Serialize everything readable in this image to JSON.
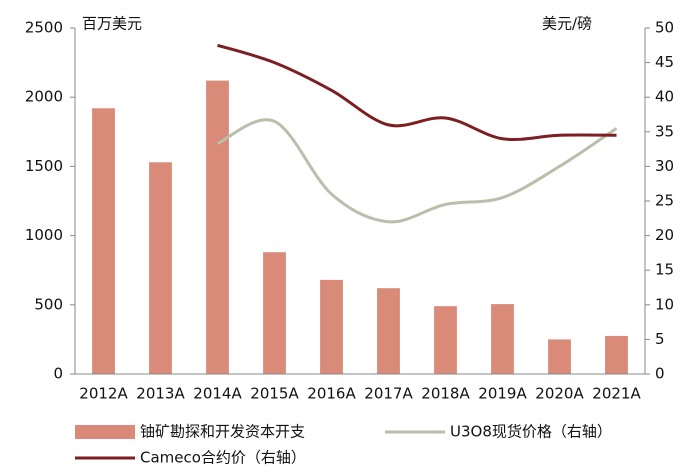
{
  "chart_data": {
    "type": "bar_line",
    "y_label": "百万美元",
    "y2_label": "美元/磅",
    "categories": [
      "2012A",
      "2013A",
      "2014A",
      "2015A",
      "2016A",
      "2017A",
      "2018A",
      "2019A",
      "2020A",
      "2021A"
    ],
    "series": [
      {
        "name": "铀矿勘探和开发资本开支",
        "type": "bar",
        "color": "#d98a78",
        "axis": "y",
        "values": [
          1920,
          1530,
          2120,
          880,
          680,
          620,
          490,
          505,
          250,
          275
        ]
      },
      {
        "name": "U3O8现货价格（右轴）",
        "type": "line",
        "color": "#b8bfaa",
        "axis": "y2",
        "values": [
          null,
          null,
          33.3,
          36.5,
          26,
          22,
          24.5,
          25.5,
          30,
          35.5
        ]
      },
      {
        "name": "Cameco合约价（右轴）",
        "type": "line",
        "color": "#7b1f22",
        "axis": "y2",
        "values": [
          null,
          null,
          47.5,
          45,
          41,
          36,
          37,
          34,
          34.5,
          34.5
        ]
      }
    ],
    "ylim": [
      0,
      2500
    ],
    "yticks": [
      0,
      500,
      1000,
      1500,
      2000,
      2500
    ],
    "y2lim": [
      0,
      50
    ],
    "y2ticks": [
      0,
      5,
      10,
      15,
      20,
      25,
      30,
      35,
      40,
      45,
      50
    ],
    "grid": false,
    "legend": "bottom"
  }
}
